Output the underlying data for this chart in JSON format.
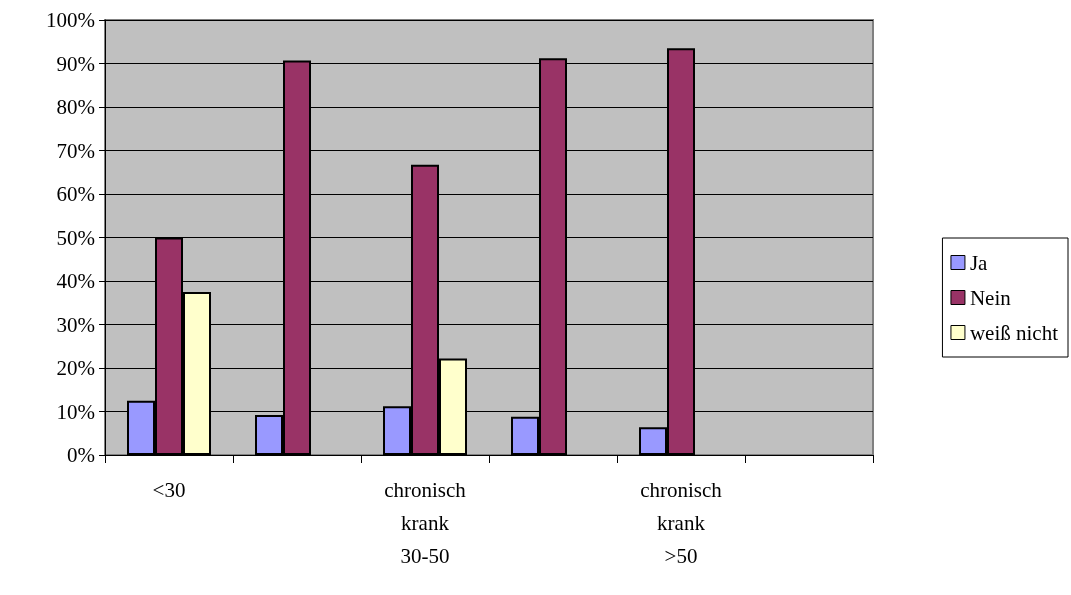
{
  "chart_data": {
    "type": "bar",
    "categories": [
      "<30",
      null,
      "chronisch\nkrank\n30-50",
      null,
      "chronisch\nkrank\n>50",
      null
    ],
    "series": [
      {
        "name": "Ja",
        "color": "#9999ff",
        "values": [
          12.5,
          9.2,
          11.2,
          8.8,
          6.4,
          null
        ]
      },
      {
        "name": "Nein",
        "color": "#993366",
        "values": [
          50,
          90.7,
          66.7,
          91.2,
          93.5,
          null
        ]
      },
      {
        "name": "weiß nicht",
        "color": "#ffffcc",
        "values": [
          37.5,
          null,
          22.2,
          null,
          null,
          null
        ]
      }
    ],
    "ylim": [
      0,
      100
    ],
    "yticks": [
      {
        "value": 0,
        "label": "0%"
      },
      {
        "value": 10,
        "label": "10%"
      },
      {
        "value": 20,
        "label": "20%"
      },
      {
        "value": 30,
        "label": "30%"
      },
      {
        "value": 40,
        "label": "40%"
      },
      {
        "value": 50,
        "label": "50%"
      },
      {
        "value": 60,
        "label": "60%"
      },
      {
        "value": 70,
        "label": "70%"
      },
      {
        "value": 80,
        "label": "80%"
      },
      {
        "value": 90,
        "label": "90%"
      },
      {
        "value": 100,
        "label": "100%"
      }
    ],
    "grid": "y",
    "legend": "right"
  }
}
